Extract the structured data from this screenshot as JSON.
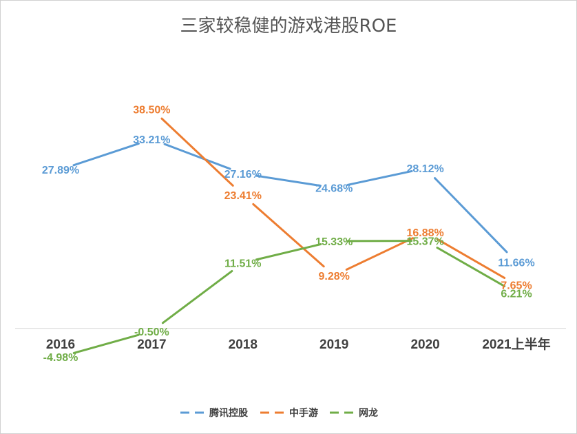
{
  "chart_data": {
    "type": "line",
    "title": "三家较稳健的游戏港股ROE",
    "categories": [
      "2016",
      "2017",
      "2018",
      "2019",
      "2020",
      "2021上半年"
    ],
    "series": [
      {
        "name": "腾讯控股",
        "color": "#5b9bd5",
        "values": [
          27.89,
          33.21,
          27.16,
          24.68,
          28.12,
          11.66
        ],
        "labels": [
          "27.89%",
          "33.21%",
          "27.16%",
          "24.68%",
          "28.12%",
          "11.66%"
        ]
      },
      {
        "name": "中手游",
        "color": "#ed7d31",
        "values": [
          null,
          38.5,
          23.41,
          9.28,
          16.88,
          7.65
        ],
        "labels": [
          "",
          "38.50%",
          "23.41%",
          "9.28%",
          "16.88%",
          "7.65%"
        ]
      },
      {
        "name": "网龙",
        "color": "#70ad47",
        "values": [
          -4.98,
          -0.5,
          11.51,
          15.33,
          15.37,
          6.21
        ],
        "labels": [
          "-4.98%",
          "-0.50%",
          "11.51%",
          "15.33%",
          "15.37%",
          "6.21%"
        ]
      }
    ],
    "xlabel": "",
    "ylabel": "",
    "ylim": [
      -5,
      40
    ],
    "grid": false,
    "legend": "bottom"
  }
}
